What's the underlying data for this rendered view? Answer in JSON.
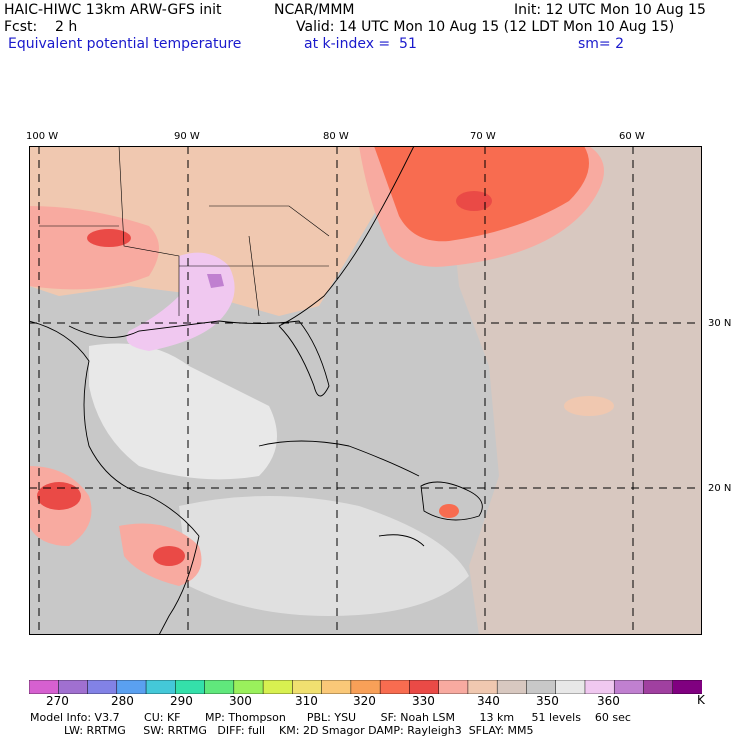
{
  "header": {
    "model": "HAIC-HIWC 13km ARW-GFS init",
    "org": "NCAR/MMM",
    "init": "Init: 12 UTC Mon 10 Aug 15",
    "fcst": "Fcst:    2 h",
    "valid": "Valid: 14 UTC Mon 10 Aug 15 (12 LDT Mon 10 Aug 15)",
    "field": "Equivalent potential temperature",
    "level": "at k-index =  51",
    "smooth": "sm= 2"
  },
  "lon_labels": [
    "100 W",
    "90 W",
    "80 W",
    "70 W",
    "60 W"
  ],
  "lat_labels": [
    "30 N",
    "20 N"
  ],
  "colorbar": {
    "colors": [
      "#d660d0",
      "#a070d0",
      "#8282e6",
      "#5aa0f0",
      "#44c8d8",
      "#34e0aa",
      "#60e87c",
      "#9af05c",
      "#d8f050",
      "#f0e070",
      "#fac878",
      "#f8a058",
      "#f86c50",
      "#ea4a46",
      "#f8aaa0",
      "#f0c8b0",
      "#d8c8c0",
      "#c8c8c8",
      "#e8e8e8",
      "#f0c8f0",
      "#c080d0",
      "#a040a0",
      "#800080"
    ],
    "labels": [
      "270",
      "280",
      "290",
      "300",
      "310",
      "320",
      "330",
      "340",
      "350",
      "360"
    ],
    "unit": "K"
  },
  "model_info": {
    "line1": "Model Info: V3.7       CU: KF       MP: Thompson      PBL: YSU       SF: Noah LSM       13 km     51 levels    60 sec",
    "line2": "LW: RRTMG     SW: RRTMG   DIFF: full    KM: 2D Smagor DAMP: Rayleigh3  SFLAY: MM5"
  }
}
